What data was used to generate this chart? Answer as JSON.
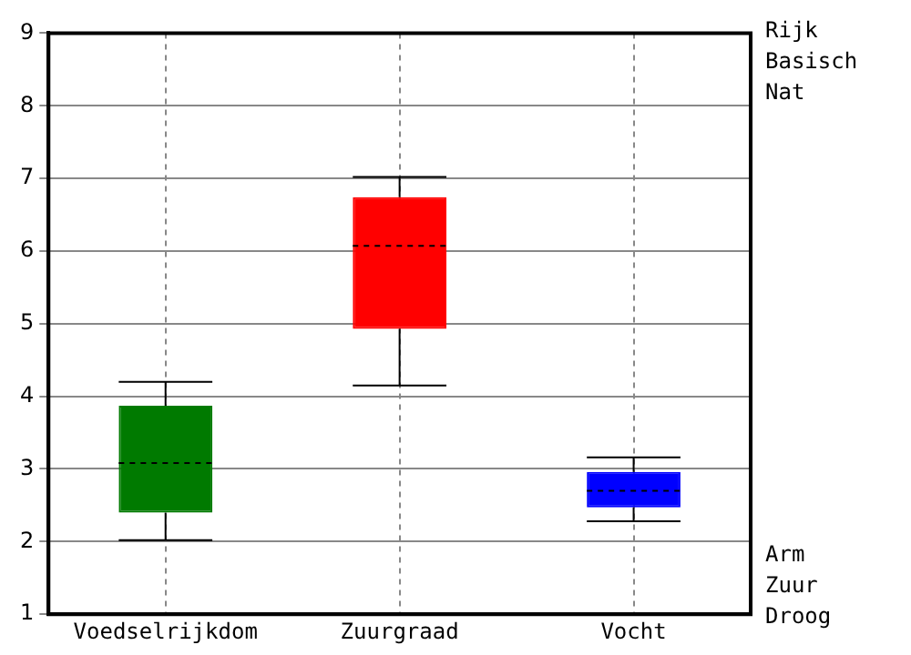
{
  "chart_data": {
    "type": "box",
    "categories": [
      "Voedselrijkdom",
      "Zuurgraad",
      "Vocht"
    ],
    "boxes": [
      {
        "low": 2.02,
        "q1": 2.4,
        "median": 3.08,
        "q3": 3.87,
        "high": 4.2
      },
      {
        "low": 4.15,
        "q1": 4.93,
        "median": 6.07,
        "q3": 6.74,
        "high": 7.02
      },
      {
        "low": 2.28,
        "q1": 2.47,
        "median": 2.7,
        "q3": 2.96,
        "high": 3.16
      }
    ],
    "colors": [
      "#007a00",
      "#ff0000",
      "#0000ff"
    ],
    "ylim": [
      1,
      9
    ],
    "yticks": [
      1,
      2,
      3,
      4,
      5,
      6,
      7,
      8,
      9
    ],
    "grid": true,
    "annotations": [
      "Rijk\nBasisch\nNat",
      "Arm\nZuur\nDroog"
    ]
  }
}
